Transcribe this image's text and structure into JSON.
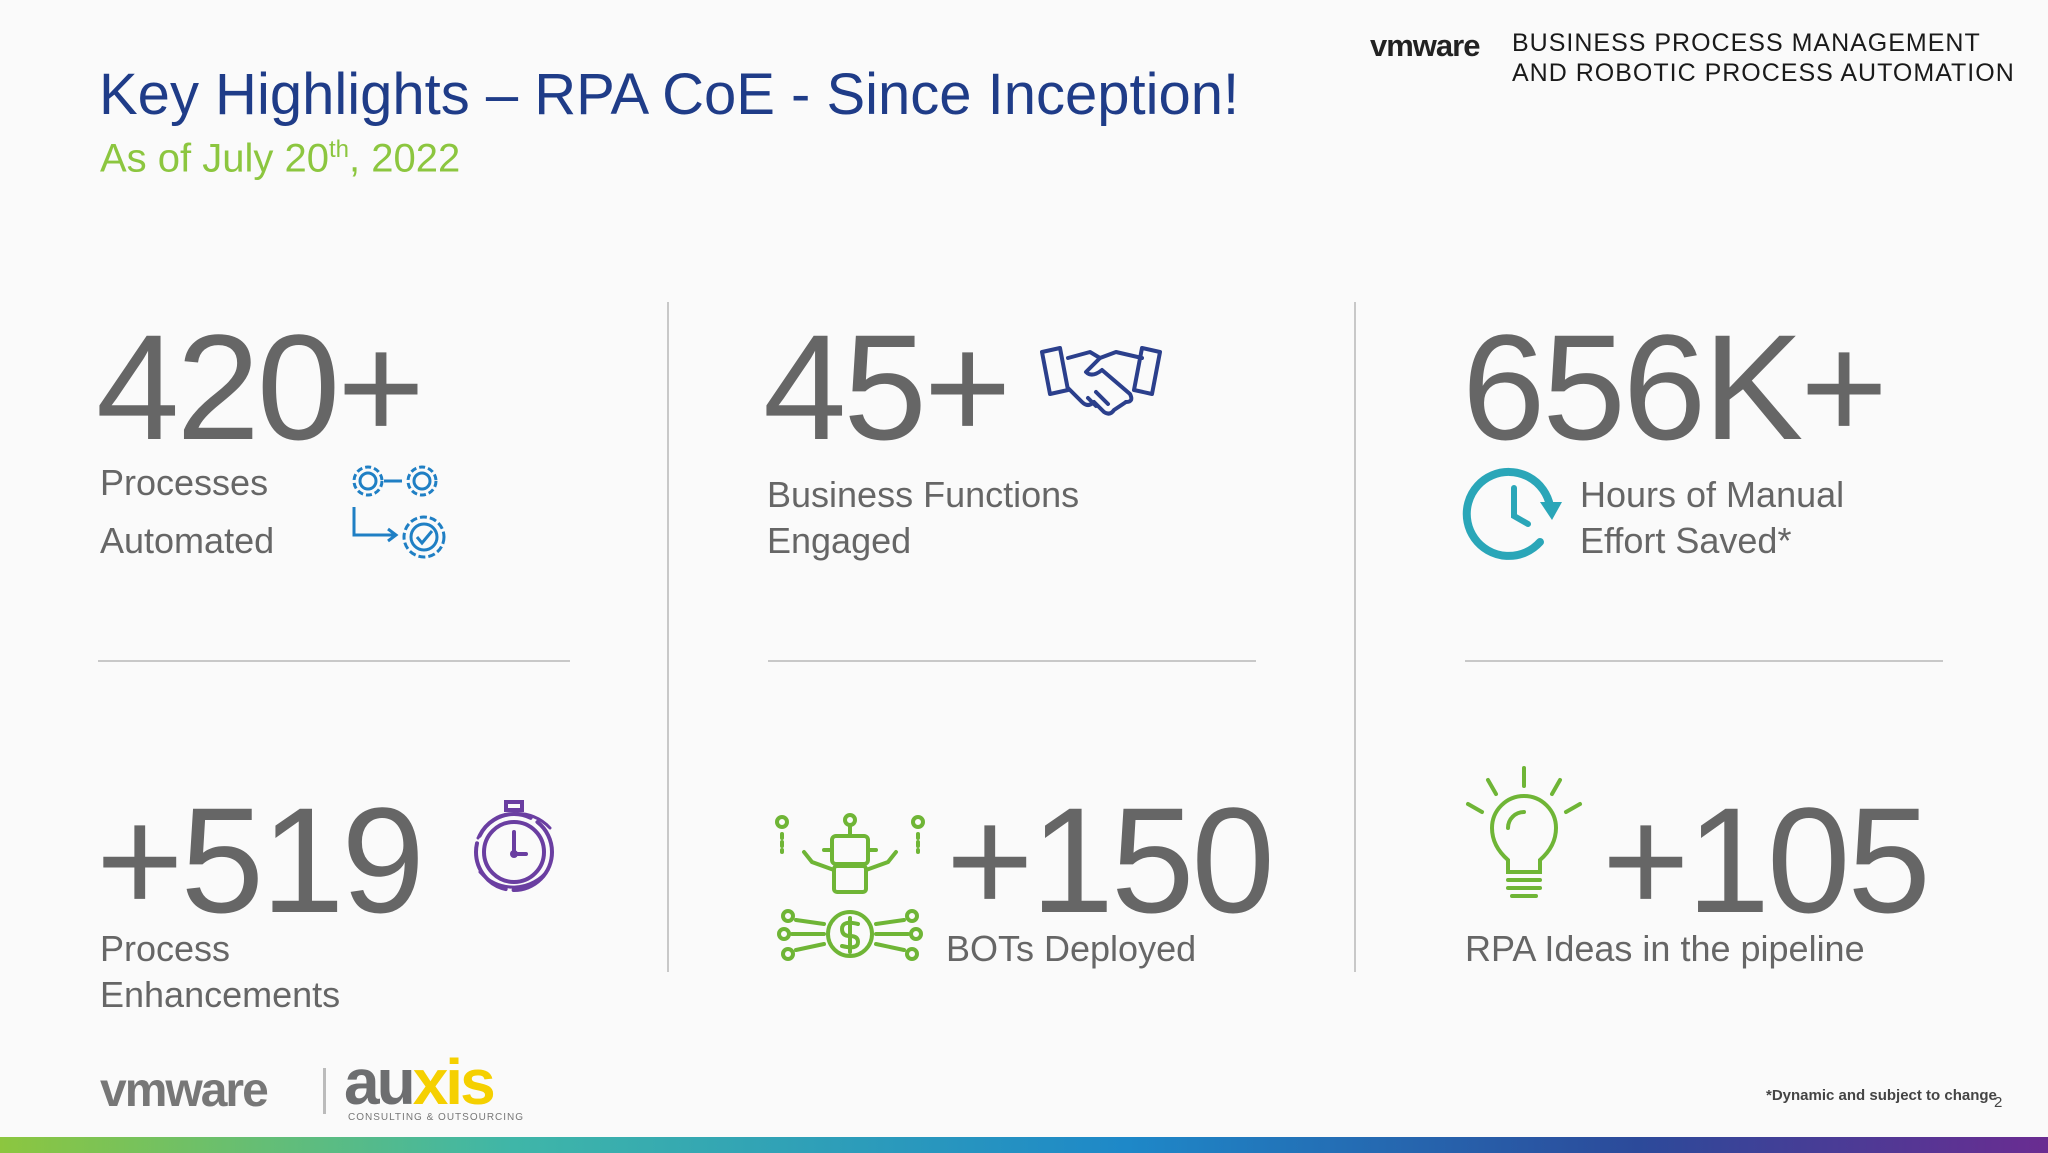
{
  "header": {
    "title": "Key Highlights – RPA CoE - Since Inception!",
    "subtitle_pre": "As of July 20",
    "subtitle_sup": "th",
    "subtitle_post": ", 2022",
    "brand_logo": "vmware",
    "brand_tag_line1": "BUSINESS PROCESS MANAGEMENT",
    "brand_tag_line2": "AND ROBOTIC PROCESS AUTOMATION"
  },
  "stats": {
    "processes": {
      "value": "420+",
      "line1": "Processes",
      "line2": "Automated",
      "icon": "process-gears-icon"
    },
    "functions": {
      "value": "45+",
      "line1": "Business Functions",
      "line2": "Engaged",
      "icon": "handshake-icon"
    },
    "hours": {
      "value": "656K+",
      "line1": "Hours of Manual",
      "line2": "Effort Saved*",
      "icon": "clock-refresh-icon"
    },
    "enhancements": {
      "value": "+519",
      "line1": "Process",
      "line2": "Enhancements",
      "icon": "stopwatch-cycle-icon"
    },
    "bots": {
      "value": "+150",
      "line1": "BOTs Deployed",
      "icon": "robot-money-icon"
    },
    "ideas": {
      "value": "+105",
      "line1": "RPA Ideas in the pipeline",
      "icon": "lightbulb-icon"
    }
  },
  "footer": {
    "vmware": "vmware",
    "auxis_a": "au",
    "auxis_x": "xis",
    "auxis_sub": "CONSULTING & OUTSOURCING",
    "footnote": "*Dynamic and subject to change",
    "page": "2"
  },
  "colors": {
    "title": "#1f3c88",
    "subtitle": "#8cc63f",
    "stat_text": "#666666",
    "icon_blue": "#1f7fc4",
    "icon_navy": "#2b3f8c",
    "icon_teal": "#2aa6b8",
    "icon_purple": "#6a3ea1",
    "icon_green": "#6fb536"
  }
}
